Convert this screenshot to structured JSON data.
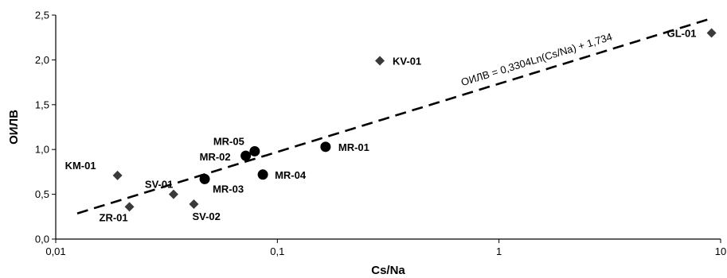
{
  "chart_data": {
    "type": "scatter",
    "xscale": "log",
    "xlim": [
      0.01,
      10
    ],
    "ylim": [
      0.0,
      2.5
    ],
    "xticks": [
      0.01,
      0.1,
      1,
      10
    ],
    "xtick_labels": [
      "0,01",
      "0,1",
      "1",
      "10"
    ],
    "yticks": [
      0.0,
      0.5,
      1.0,
      1.5,
      2.0,
      2.5
    ],
    "ytick_labels": [
      "0,0",
      "0,5",
      "1,0",
      "1,5",
      "2,0",
      "2,5"
    ],
    "xlabel": "Cs/Na",
    "ylabel": "ОИЛВ",
    "grid": false,
    "legend": false,
    "colors": {
      "points": "#000000",
      "diamonds": "#3a3a3a",
      "trendline": "#000000"
    },
    "series": [
      {
        "marker": "diamond",
        "points": [
          {
            "label": "KM-01",
            "x": 0.019,
            "y": 0.71
          },
          {
            "label": "ZR-01",
            "x": 0.0215,
            "y": 0.36
          },
          {
            "label": "SV-01",
            "x": 0.034,
            "y": 0.5
          },
          {
            "label": "SV-02",
            "x": 0.042,
            "y": 0.39
          },
          {
            "label": "KV-01",
            "x": 0.29,
            "y": 1.99
          },
          {
            "label": "GL-01",
            "x": 9.1,
            "y": 2.3
          }
        ]
      },
      {
        "marker": "circle",
        "points": [
          {
            "label": "MR-05",
            "x": 0.079,
            "y": 0.98
          },
          {
            "label": "MR-02",
            "x": 0.072,
            "y": 0.93
          },
          {
            "label": "MR-03",
            "x": 0.047,
            "y": 0.67
          },
          {
            "label": "MR-04",
            "x": 0.086,
            "y": 0.72
          },
          {
            "label": "MR-01",
            "x": 0.165,
            "y": 1.03
          }
        ]
      }
    ],
    "trendline": {
      "type": "logarithmic",
      "slope": 0.3304,
      "intercept": 1.734,
      "x_range": [
        0.0125,
        9.0
      ],
      "equation": "ОИЛВ = 0,3304Ln(Cs/Na) + 1,734"
    }
  }
}
